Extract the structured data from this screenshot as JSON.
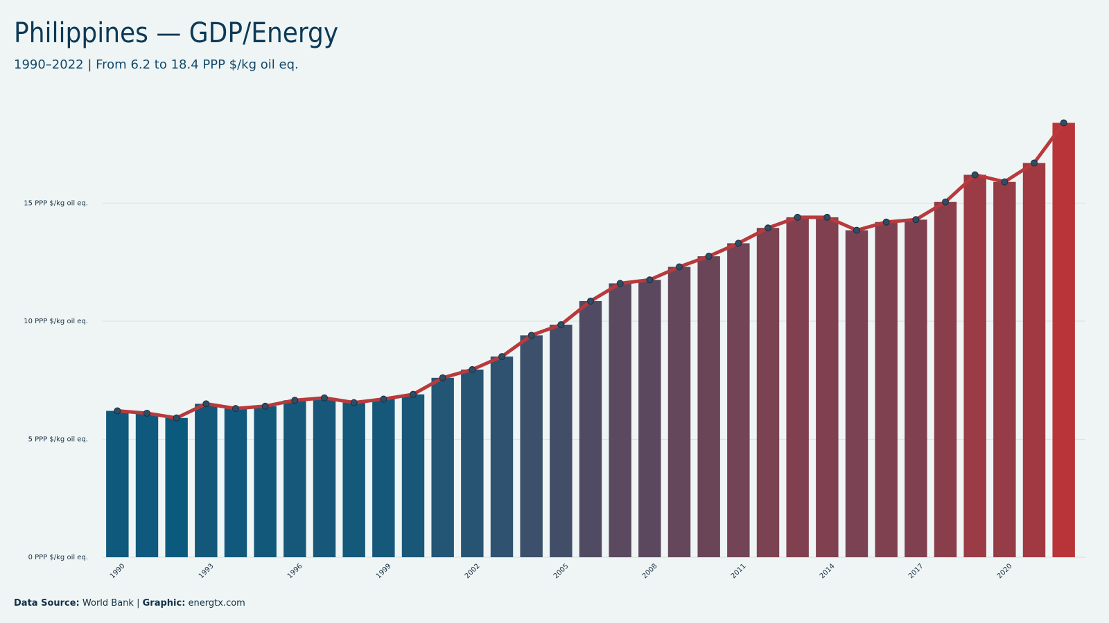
{
  "chart_data": {
    "type": "bar",
    "title": "Philippines — GDP/Energy",
    "subtitle": "1990–2022 | From 6.2 to 18.4 PPP $/kg oil eq.",
    "categories": [
      "1990",
      null,
      null,
      "1993",
      null,
      null,
      "1996",
      null,
      null,
      "1999",
      null,
      null,
      "2002",
      null,
      null,
      "2005",
      null,
      null,
      "2008",
      null,
      null,
      "2011",
      null,
      null,
      "2014",
      null,
      null,
      "2017",
      null,
      null,
      "2020",
      null,
      null
    ],
    "values": [
      6.2,
      6.1,
      5.9,
      6.5,
      6.3,
      6.4,
      6.65,
      6.75,
      6.55,
      6.7,
      6.9,
      7.6,
      7.95,
      8.5,
      9.4,
      9.85,
      10.85,
      11.6,
      11.75,
      12.3,
      12.75,
      13.3,
      13.95,
      14.4,
      14.4,
      13.85,
      14.2,
      14.3,
      15.05,
      16.2,
      15.9,
      16.7,
      18.4
    ],
    "color_scale": [
      "#0b5a7e",
      "#b93439"
    ],
    "line_color": "#b83a3c",
    "marker_color": "#2e4d66",
    "ylim": [
      0,
      19
    ],
    "yticks": [
      {
        "value": 0,
        "label": "0 PPP $/kg oil eq."
      },
      {
        "value": 5,
        "label": "5 PPP $/kg oil eq."
      },
      {
        "value": 10,
        "label": "10 PPP $/kg oil eq."
      },
      {
        "value": 15,
        "label": "15 PPP $/kg oil eq."
      }
    ],
    "grid": true,
    "footer": {
      "source_label": "Data Source:",
      "source": "World Bank",
      "separator": "|",
      "graphic_label": "Graphic:",
      "graphic": "energtx.com"
    }
  }
}
